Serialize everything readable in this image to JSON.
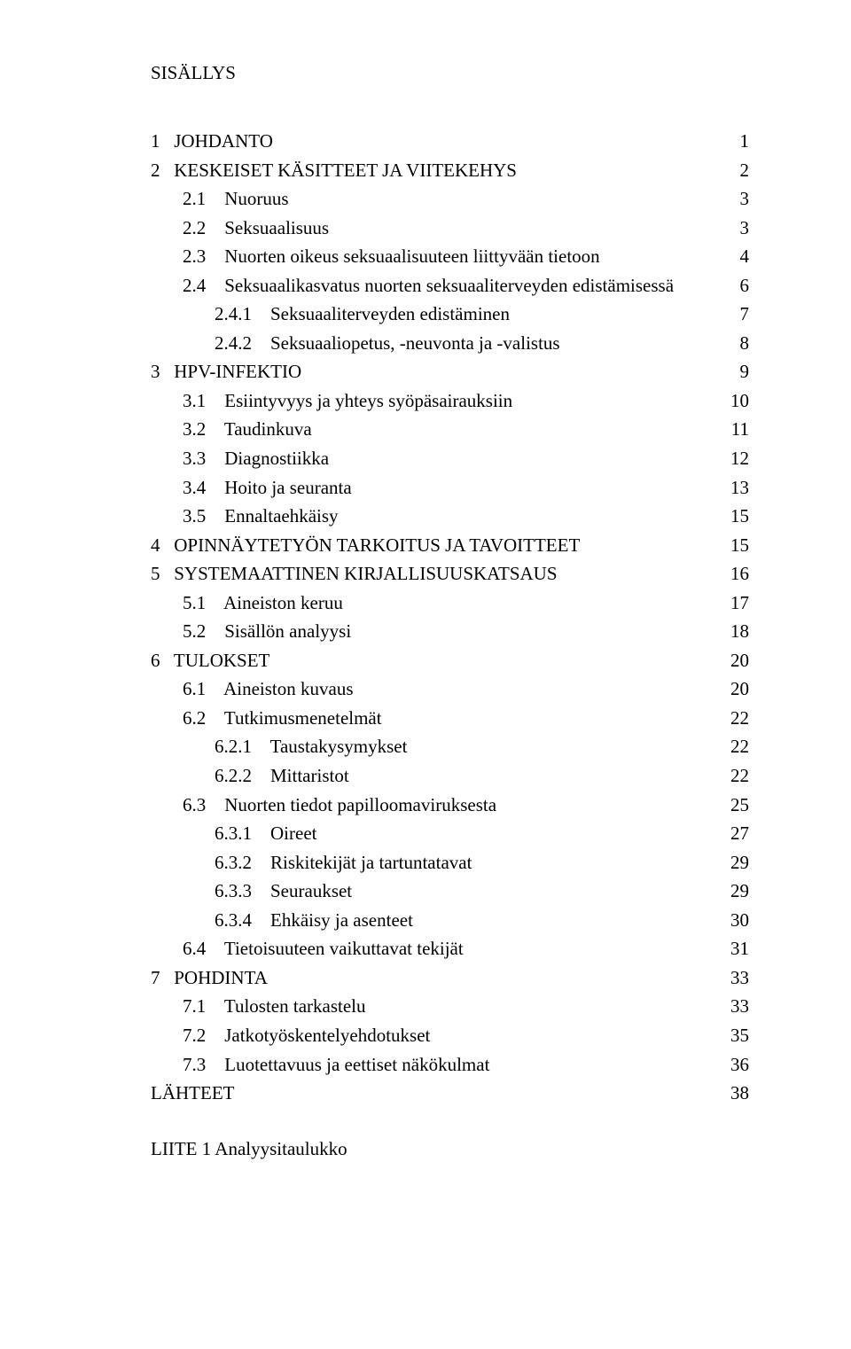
{
  "title": "SISÄLLYS",
  "entries": [
    {
      "level": 1,
      "num": "1",
      "text": "JOHDANTO",
      "page": "1"
    },
    {
      "level": 1,
      "num": "2",
      "text": "KESKEISET KÄSITTEET JA VIITEKEHYS",
      "page": "2"
    },
    {
      "level": 2,
      "num": "2.1",
      "text": "Nuoruus",
      "page": "3"
    },
    {
      "level": 2,
      "num": "2.2",
      "text": "Seksuaalisuus",
      "page": "3"
    },
    {
      "level": 2,
      "num": "2.3",
      "text": "Nuorten oikeus seksuaalisuuteen liittyvään tietoon",
      "page": "4"
    },
    {
      "level": 2,
      "num": "2.4",
      "text": "Seksuaalikasvatus nuorten seksuaaliterveyden edistämisessä",
      "page": "6"
    },
    {
      "level": 3,
      "num": "2.4.1",
      "text": "Seksuaaliterveyden edistäminen",
      "page": "7"
    },
    {
      "level": 3,
      "num": "2.4.2",
      "text": "Seksuaaliopetus, -neuvonta ja -valistus",
      "page": "8"
    },
    {
      "level": 1,
      "num": "3",
      "text": "HPV-INFEKTIO",
      "page": "9"
    },
    {
      "level": 2,
      "num": "3.1",
      "text": "Esiintyvyys ja yhteys syöpäsairauksiin",
      "page": "10"
    },
    {
      "level": 2,
      "num": "3.2",
      "text": "Taudinkuva",
      "page": "11"
    },
    {
      "level": 2,
      "num": "3.3",
      "text": "Diagnostiikka",
      "page": "12"
    },
    {
      "level": 2,
      "num": "3.4",
      "text": "Hoito ja seuranta",
      "page": "13"
    },
    {
      "level": 2,
      "num": "3.5",
      "text": "Ennaltaehkäisy",
      "page": "15"
    },
    {
      "level": 1,
      "num": "4",
      "text": "OPINNÄYTETYÖN TARKOITUS JA TAVOITTEET",
      "page": "15"
    },
    {
      "level": 1,
      "num": "5",
      "text": "SYSTEMAATTINEN KIRJALLISUUSKATSAUS",
      "page": "16"
    },
    {
      "level": 2,
      "num": "5.1",
      "text": "Aineiston keruu",
      "page": "17"
    },
    {
      "level": 2,
      "num": "5.2",
      "text": "Sisällön analyysi",
      "page": "18"
    },
    {
      "level": 1,
      "num": "6",
      "text": "TULOKSET",
      "page": "20"
    },
    {
      "level": 2,
      "num": "6.1",
      "text": "Aineiston kuvaus",
      "page": "20"
    },
    {
      "level": 2,
      "num": "6.2",
      "text": "Tutkimusmenetelmät",
      "page": "22"
    },
    {
      "level": 3,
      "num": "6.2.1",
      "text": "Taustakysymykset",
      "page": "22"
    },
    {
      "level": 3,
      "num": "6.2.2",
      "text": "Mittaristot",
      "page": "22"
    },
    {
      "level": 2,
      "num": "6.3",
      "text": "Nuorten tiedot papilloomaviruksesta",
      "page": "25"
    },
    {
      "level": 3,
      "num": "6.3.1",
      "text": "Oireet",
      "page": "27"
    },
    {
      "level": 3,
      "num": "6.3.2",
      "text": "Riskitekijät ja tartuntatavat",
      "page": "29"
    },
    {
      "level": 3,
      "num": "6.3.3",
      "text": "Seuraukset",
      "page": "29"
    },
    {
      "level": 3,
      "num": "6.3.4",
      "text": "Ehkäisy ja asenteet",
      "page": "30"
    },
    {
      "level": 2,
      "num": "6.4",
      "text": "Tietoisuuteen vaikuttavat tekijät",
      "page": "31"
    },
    {
      "level": 1,
      "num": "7",
      "text": "POHDINTA",
      "page": "33"
    },
    {
      "level": 2,
      "num": "7.1",
      "text": "Tulosten tarkastelu",
      "page": "33"
    },
    {
      "level": 2,
      "num": "7.2",
      "text": "Jatkotyöskentelyehdotukset",
      "page": "35"
    },
    {
      "level": 2,
      "num": "7.3",
      "text": "Luotettavuus ja eettiset näkökulmat",
      "page": "36"
    },
    {
      "level": 1,
      "num": "",
      "text": "LÄHTEET",
      "page": "38"
    }
  ],
  "appendix": "LIITE 1 Analyysitaulukko",
  "num_col_width": {
    "1": 4,
    "2": 7,
    "3": 9
  }
}
